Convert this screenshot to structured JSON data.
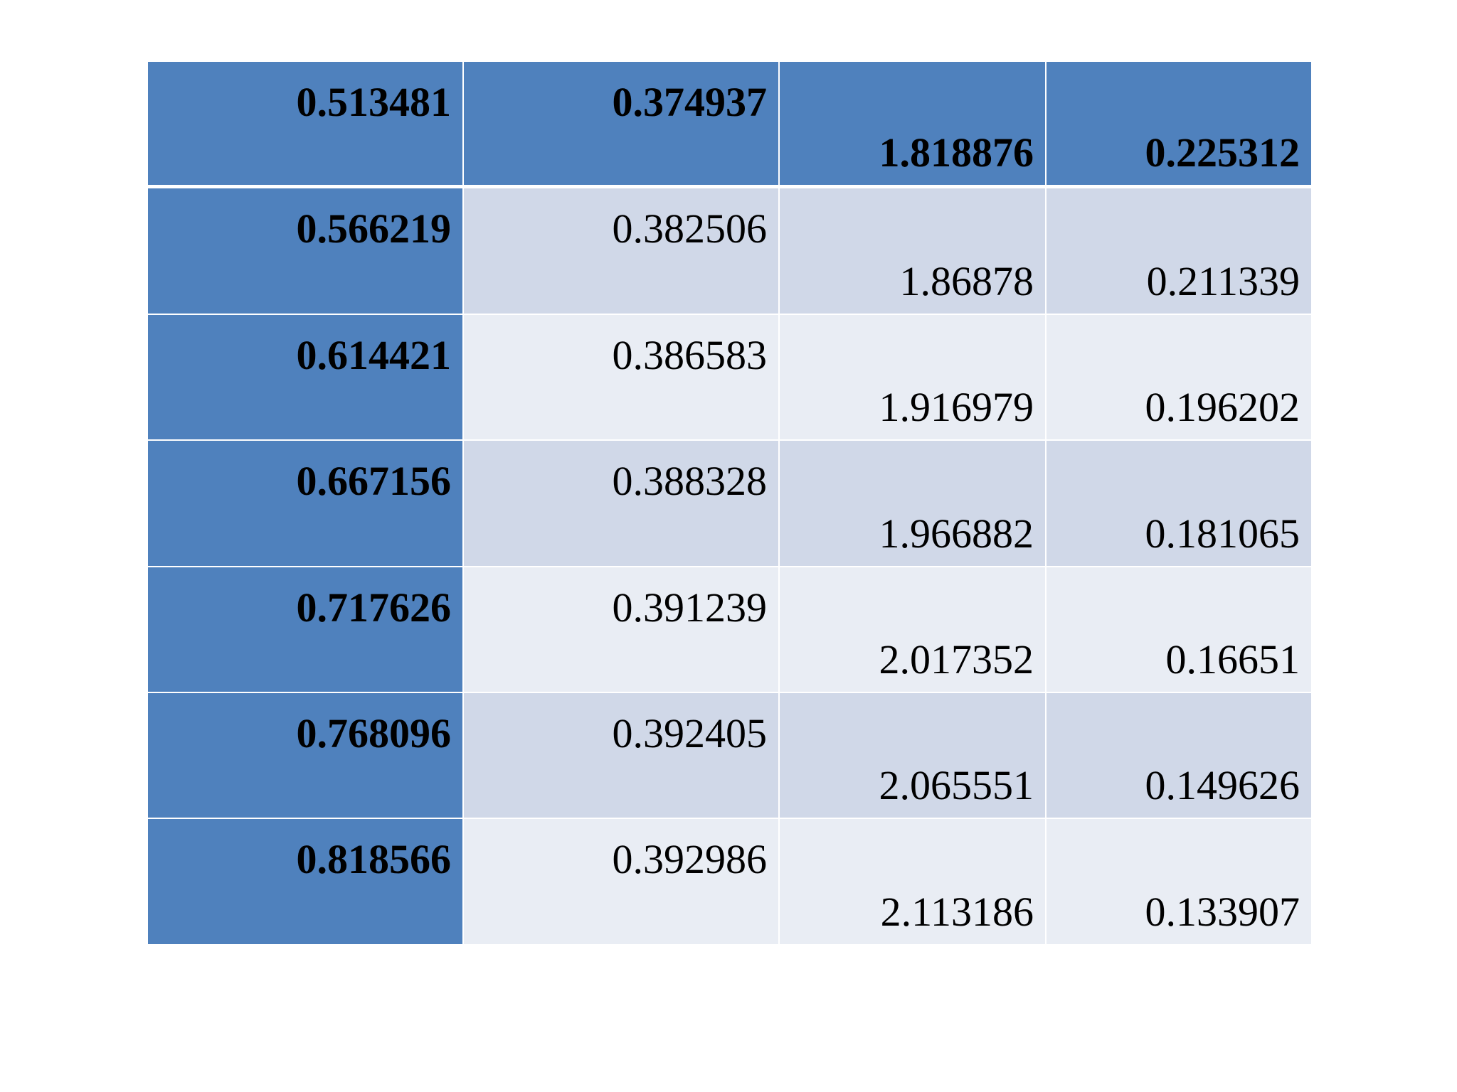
{
  "table": {
    "rows": [
      [
        "0.513481",
        "0.374937",
        "1.818876",
        "0.225312"
      ],
      [
        "0.566219",
        "0.382506",
        "1.86878",
        "0.211339"
      ],
      [
        "0.614421",
        "0.386583",
        "1.916979",
        "0.196202"
      ],
      [
        "0.667156",
        "0.388328",
        "1.966882",
        "0.181065"
      ],
      [
        "0.717626",
        "0.391239",
        "2.017352",
        "0.16651"
      ],
      [
        "0.768096",
        "0.392405",
        "2.065551",
        "0.149626"
      ],
      [
        "0.818566",
        "0.392986",
        "2.113186",
        "0.133907"
      ]
    ]
  }
}
